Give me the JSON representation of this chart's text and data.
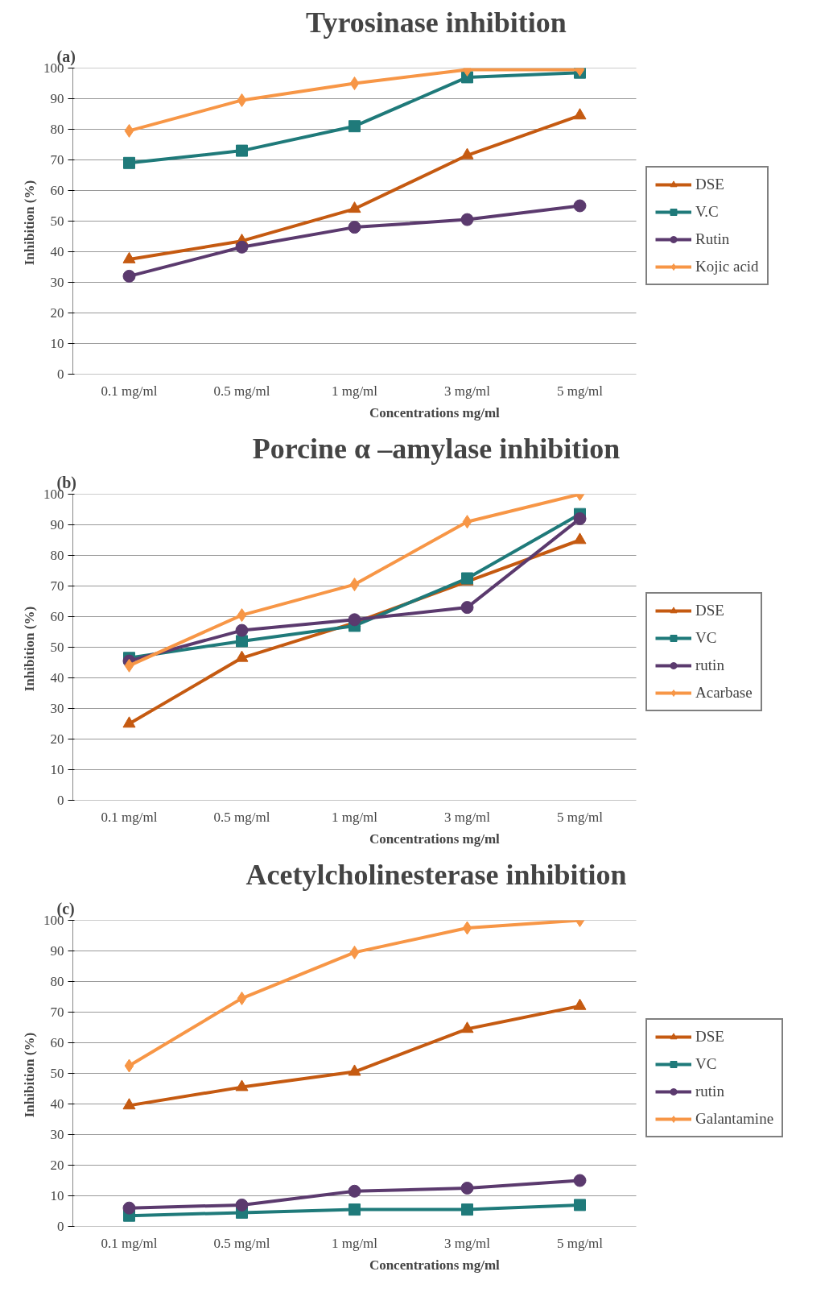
{
  "chart_data": [
    {
      "type": "line",
      "title": "Tyrosinase inhibition",
      "annotations": [
        "(a)"
      ],
      "xlabel": "Concentrations  mg/ml",
      "ylabel": "Inhibition  (%)",
      "categories": [
        "0.1 mg/ml",
        "0.5 mg/ml",
        "1 mg/ml",
        "3 mg/ml",
        "5 mg/ml"
      ],
      "ylim": [
        0,
        100
      ],
      "yticks": [
        0,
        10,
        20,
        30,
        40,
        50,
        60,
        70,
        80,
        90,
        100
      ],
      "grid": "y",
      "legend": "right",
      "series": [
        {
          "name": "DSE",
          "color": "#c55a11",
          "marker": "triangle",
          "values": [
            37.5,
            43.5,
            54,
            71.5,
            84.5
          ]
        },
        {
          "name": "V.C",
          "color": "#1f7a7a",
          "marker": "square",
          "values": [
            69,
            73,
            81,
            97,
            98.5
          ]
        },
        {
          "name": "Rutin",
          "color": "#5b3a6e",
          "marker": "circle",
          "values": [
            32,
            41.5,
            48,
            50.5,
            55
          ]
        },
        {
          "name": "Kojic acid",
          "color": "#f79646",
          "marker": "diamond",
          "values": [
            79.5,
            89.5,
            95,
            99.5,
            99.5
          ]
        }
      ]
    },
    {
      "type": "line",
      "title": "Porcine α –amylase inhibition",
      "annotations": [
        "(b)"
      ],
      "xlabel": "Concentrations  mg/ml",
      "ylabel": "Inhibition  (%)",
      "categories": [
        "0.1 mg/ml",
        "0.5 mg/ml",
        "1 mg/ml",
        "3 mg/ml",
        "5 mg/ml"
      ],
      "ylim": [
        0,
        100
      ],
      "yticks": [
        0,
        10,
        20,
        30,
        40,
        50,
        60,
        70,
        80,
        90,
        100
      ],
      "grid": "y",
      "legend": "right",
      "series": [
        {
          "name": "DSE",
          "color": "#c55a11",
          "marker": "triangle",
          "values": [
            25,
            46.5,
            58,
            71.5,
            85
          ]
        },
        {
          "name": "VC",
          "color": "#1f7a7a",
          "marker": "square",
          "values": [
            46.5,
            52,
            57,
            72.5,
            93.5
          ]
        },
        {
          "name": "rutin",
          "color": "#5b3a6e",
          "marker": "circle",
          "values": [
            45.5,
            55.5,
            59,
            63,
            92
          ]
        },
        {
          "name": "Acarbase",
          "color": "#f79646",
          "marker": "diamond",
          "values": [
            44,
            60.5,
            70.5,
            91,
            100
          ]
        }
      ]
    },
    {
      "type": "line",
      "title": "Acetylcholinesterase inhibition",
      "annotations": [
        "(c)"
      ],
      "xlabel": "Concentrations  mg/ml",
      "ylabel": "Inhibition  (%)",
      "categories": [
        "0.1 mg/ml",
        "0.5 mg/ml",
        "1 mg/ml",
        "3 mg/ml",
        "5 mg/ml"
      ],
      "ylim": [
        0,
        100
      ],
      "yticks": [
        0,
        10,
        20,
        30,
        40,
        50,
        60,
        70,
        80,
        90,
        100
      ],
      "grid": "y",
      "legend": "right",
      "series": [
        {
          "name": "DSE",
          "color": "#c55a11",
          "marker": "triangle",
          "values": [
            39.5,
            45.5,
            50.5,
            64.5,
            72
          ]
        },
        {
          "name": "VC",
          "color": "#1f7a7a",
          "marker": "square",
          "values": [
            3.5,
            4.5,
            5.5,
            5.5,
            7
          ]
        },
        {
          "name": "rutin",
          "color": "#5b3a6e",
          "marker": "circle",
          "values": [
            6,
            7,
            11.5,
            12.5,
            15
          ]
        },
        {
          "name": "Galantamine",
          "color": "#f79646",
          "marker": "diamond",
          "values": [
            52.5,
            74.5,
            89.5,
            97.5,
            100
          ]
        }
      ]
    }
  ]
}
